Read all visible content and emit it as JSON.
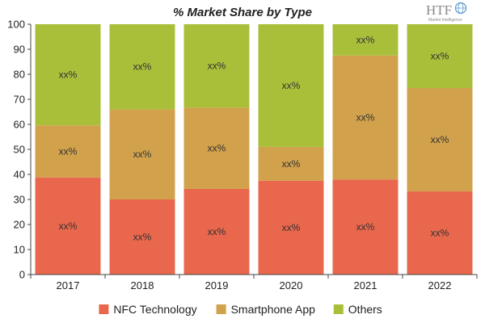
{
  "chart_data": {
    "type": "bar",
    "stacked": true,
    "title": "% Market Share by Type",
    "categories": [
      "2017",
      "2018",
      "2019",
      "2020",
      "2021",
      "2022"
    ],
    "series": [
      {
        "name": "NFC Technology",
        "color": "#e8674d",
        "values": [
          38.8,
          30.0,
          34.2,
          37.5,
          38.0,
          33.2
        ],
        "labels": [
          "xx%",
          "xx%",
          "xx%",
          "xx%",
          "xx%",
          "xx%"
        ]
      },
      {
        "name": "Smartphone App",
        "color": "#d1a14c",
        "values": [
          20.8,
          36.0,
          32.5,
          13.5,
          49.5,
          41.3
        ],
        "labels": [
          "xx%",
          "xx%",
          "xx%",
          "xx%",
          "xx%",
          "xx%"
        ]
      },
      {
        "name": "Others",
        "color": "#a9bf3a",
        "values": [
          40.4,
          34.0,
          33.3,
          49.0,
          12.5,
          25.5
        ],
        "labels": [
          "xx%",
          "xx%",
          "xx%",
          "xx%",
          "xx%",
          "xx%"
        ]
      }
    ],
    "ylim": [
      0,
      100
    ],
    "yticks": [
      "0",
      "10",
      "20",
      "30",
      "40",
      "50",
      "60",
      "70",
      "80",
      "90",
      "100"
    ],
    "xlabel": "",
    "ylabel": "",
    "grid": false,
    "legend": "bottom"
  },
  "logo": {
    "text": "HTF",
    "subtitle": "Market Intelligence"
  }
}
